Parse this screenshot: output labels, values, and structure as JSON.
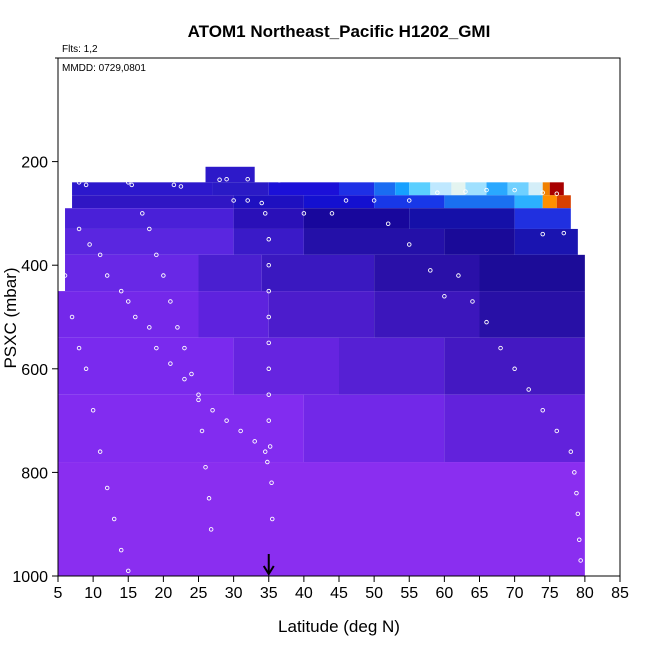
{
  "chart_data": {
    "type": "heatmap",
    "title": "ATOM1 Northeast_Pacific H1202_GMI",
    "flights_label": "Flts: 1,2",
    "date_label": "MMDD: 0729,0801",
    "xlabel": "Latitude (deg N)",
    "ylabel": "PSXC (mbar)",
    "xlim": [
      5,
      85
    ],
    "ylim": [
      1000,
      0
    ],
    "x_ticks": [
      "5",
      "10",
      "15",
      "20",
      "25",
      "30",
      "35",
      "40",
      "45",
      "50",
      "55",
      "60",
      "65",
      "70",
      "75",
      "80",
      "85"
    ],
    "y_ticks": [
      "200",
      "400",
      "600",
      "800",
      "1000"
    ],
    "marker": {
      "x": 35,
      "symbol": "arrow"
    },
    "colors": {
      "low": "#8a2be2",
      "mid": "#1e1ecd",
      "high": "#00aaff",
      "peak": "#b00000",
      "points": "#ffffff"
    },
    "strips": [
      {
        "p": [
          210,
          240
        ],
        "cells": [
          [
            26,
            33,
            "#2d19c9"
          ]
        ]
      },
      {
        "p": [
          240,
          265
        ],
        "cells": [
          [
            7,
            27,
            "#2c18cc"
          ],
          [
            27,
            35,
            "#2a1ac6"
          ],
          [
            35,
            45,
            "#1b10d8"
          ],
          [
            45,
            50,
            "#1e30e6"
          ],
          [
            50,
            53,
            "#1a6cf2"
          ],
          [
            53,
            55,
            "#16a0ff"
          ],
          [
            55,
            58,
            "#5bcfff"
          ],
          [
            58,
            61,
            "#bfe8ff"
          ],
          [
            61,
            63,
            "#e4f4f0"
          ],
          [
            63,
            66,
            "#9fe0ff"
          ],
          [
            66,
            69,
            "#2aa8ff"
          ],
          [
            69,
            72,
            "#6fd0ff"
          ],
          [
            72,
            74,
            "#d4eef8"
          ],
          [
            74,
            75,
            "#f08000"
          ],
          [
            75,
            77,
            "#a80000"
          ]
        ]
      },
      {
        "p": [
          265,
          290
        ],
        "cells": [
          [
            7,
            30,
            "#3016c4"
          ],
          [
            30,
            40,
            "#1e10c0"
          ],
          [
            40,
            50,
            "#1410d0"
          ],
          [
            50,
            60,
            "#1838e8"
          ],
          [
            60,
            70,
            "#1a70f0"
          ],
          [
            70,
            74,
            "#2cb0ff"
          ],
          [
            74,
            76,
            "#ff9000"
          ],
          [
            76,
            78,
            "#d84000"
          ]
        ]
      },
      {
        "p": [
          290,
          330
        ],
        "cells": [
          [
            6,
            30,
            "#4a20d8"
          ],
          [
            30,
            40,
            "#2a10b8"
          ],
          [
            40,
            55,
            "#18079c"
          ],
          [
            55,
            70,
            "#1510a8"
          ],
          [
            70,
            78,
            "#2030e0"
          ]
        ]
      },
      {
        "p": [
          330,
          380
        ],
        "cells": [
          [
            6,
            30,
            "#5a26e0"
          ],
          [
            30,
            40,
            "#3a1ac8"
          ],
          [
            40,
            60,
            "#2410a8"
          ],
          [
            60,
            70,
            "#1a0a98"
          ],
          [
            70,
            79,
            "#1a14b0"
          ]
        ]
      },
      {
        "p": [
          380,
          450
        ],
        "cells": [
          [
            6,
            25,
            "#6828e6"
          ],
          [
            25,
            34,
            "#4a1fd0"
          ],
          [
            34,
            50,
            "#3a18c0"
          ],
          [
            50,
            65,
            "#2a10a8"
          ],
          [
            65,
            80,
            "#1c0c98"
          ]
        ]
      },
      {
        "p": [
          450,
          540
        ],
        "cells": [
          [
            5,
            25,
            "#7428ea"
          ],
          [
            25,
            35,
            "#5e22de"
          ],
          [
            35,
            50,
            "#4c1ccc"
          ],
          [
            50,
            65,
            "#3c16bc"
          ],
          [
            65,
            80,
            "#2810a6"
          ]
        ]
      },
      {
        "p": [
          540,
          650
        ],
        "cells": [
          [
            5,
            30,
            "#7a2aee"
          ],
          [
            30,
            45,
            "#6624e0"
          ],
          [
            45,
            60,
            "#5620d4"
          ],
          [
            60,
            80,
            "#4418c2"
          ]
        ]
      },
      {
        "p": [
          650,
          780
        ],
        "cells": [
          [
            5,
            40,
            "#822cf0"
          ],
          [
            40,
            60,
            "#7228e8"
          ],
          [
            60,
            80,
            "#6222dc"
          ]
        ]
      },
      {
        "p": [
          780,
          1000
        ],
        "cells": [
          [
            5,
            80,
            "#8a2ef0"
          ]
        ]
      }
    ],
    "points": [
      [
        7.5,
        235
      ],
      [
        8,
        240
      ],
      [
        9,
        245
      ],
      [
        15,
        240
      ],
      [
        15.5,
        245
      ],
      [
        21.5,
        245
      ],
      [
        22.5,
        248
      ],
      [
        28,
        235
      ],
      [
        29,
        234
      ],
      [
        32,
        234
      ],
      [
        36.5,
        236
      ],
      [
        30,
        275
      ],
      [
        32,
        275
      ],
      [
        34,
        280
      ],
      [
        40,
        300
      ],
      [
        44,
        300
      ],
      [
        46,
        275
      ],
      [
        50,
        275
      ],
      [
        55,
        275
      ],
      [
        59,
        260
      ],
      [
        63,
        258
      ],
      [
        66,
        255
      ],
      [
        70,
        255
      ],
      [
        74,
        260
      ],
      [
        76,
        262
      ],
      [
        74,
        340
      ],
      [
        77,
        338
      ],
      [
        8,
        330
      ],
      [
        9.5,
        360
      ],
      [
        11,
        380
      ],
      [
        12,
        420
      ],
      [
        14,
        450
      ],
      [
        15,
        470
      ],
      [
        16,
        500
      ],
      [
        18,
        520
      ],
      [
        19,
        560
      ],
      [
        21,
        590
      ],
      [
        23,
        620
      ],
      [
        25,
        650
      ],
      [
        27,
        680
      ],
      [
        29,
        700
      ],
      [
        31,
        720
      ],
      [
        33,
        740
      ],
      [
        34.5,
        760
      ],
      [
        34.8,
        780
      ],
      [
        6,
        420
      ],
      [
        7,
        500
      ],
      [
        8,
        560
      ],
      [
        9,
        600
      ],
      [
        10,
        680
      ],
      [
        11,
        760
      ],
      [
        12,
        830
      ],
      [
        13,
        890
      ],
      [
        14,
        950
      ],
      [
        15,
        990
      ],
      [
        17,
        300
      ],
      [
        18,
        330
      ],
      [
        19,
        380
      ],
      [
        20,
        420
      ],
      [
        21,
        470
      ],
      [
        22,
        520
      ],
      [
        23,
        560
      ],
      [
        24,
        610
      ],
      [
        25,
        660
      ],
      [
        25.5,
        720
      ],
      [
        26,
        790
      ],
      [
        26.5,
        850
      ],
      [
        26.8,
        910
      ],
      [
        34.5,
        300
      ],
      [
        35,
        350
      ],
      [
        35,
        400
      ],
      [
        35,
        450
      ],
      [
        35,
        500
      ],
      [
        35,
        550
      ],
      [
        35,
        600
      ],
      [
        35,
        650
      ],
      [
        35,
        700
      ],
      [
        35.2,
        750
      ],
      [
        35.4,
        820
      ],
      [
        35.5,
        890
      ],
      [
        52,
        320
      ],
      [
        55,
        360
      ],
      [
        58,
        410
      ],
      [
        60,
        460
      ],
      [
        62,
        420
      ],
      [
        64,
        470
      ],
      [
        66,
        510
      ],
      [
        68,
        560
      ],
      [
        70,
        600
      ],
      [
        72,
        640
      ],
      [
        74,
        680
      ],
      [
        76,
        720
      ],
      [
        78,
        760
      ],
      [
        78.5,
        800
      ],
      [
        78.8,
        840
      ],
      [
        79,
        880
      ],
      [
        79.2,
        930
      ],
      [
        79.4,
        970
      ]
    ]
  }
}
